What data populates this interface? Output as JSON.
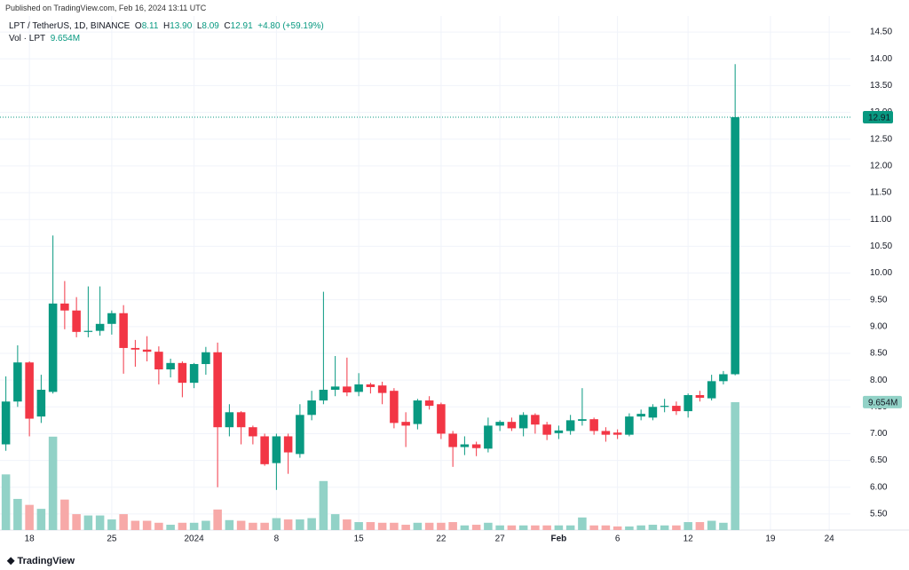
{
  "published": "Published on TradingView.com, Feb 16, 2024 13:11 UTC",
  "brand": "TradingView",
  "legend": {
    "symbol": "LPT / TetherUS, 1D, BINANCE",
    "open_label": "O",
    "open": "8.11",
    "high_label": "H",
    "high": "13.90",
    "low_label": "L",
    "low": "8.09",
    "close_label": "C",
    "close": "12.91",
    "change": "+4.80 (+59.19%)",
    "volume_name": "Vol · LPT",
    "volume": "9.654M"
  },
  "chart_data": {
    "type": "candlestick",
    "up_color": "#089981",
    "down_color": "#f23645",
    "volume_up_color": "#92d2c7",
    "volume_down_color": "#f7a9a8",
    "open": [
      6.8,
      7.6,
      8.33,
      7.32,
      7.78,
      9.43,
      9.3,
      8.9,
      8.92,
      9.05,
      9.25,
      8.6,
      8.57,
      8.53,
      8.2,
      8.32,
      7.95,
      8.3,
      8.52,
      7.12,
      7.4,
      7.12,
      6.95,
      6.45,
      6.95,
      6.62,
      7.35,
      7.62,
      7.82,
      7.88,
      7.78,
      7.92,
      7.9,
      7.8,
      7.22,
      7.18,
      7.62,
      7.55,
      7.0,
      6.75,
      6.8,
      6.72,
      7.15,
      7.22,
      7.1,
      7.35,
      7.17,
      7.01,
      7.05,
      7.24,
      7.27,
      7.05,
      7.02,
      6.98,
      7.32,
      7.3,
      7.5,
      7.52,
      7.42,
      7.72,
      7.66,
      7.98,
      8.11
    ],
    "high": [
      8.07,
      8.65,
      8.35,
      8.1,
      10.7,
      9.85,
      9.55,
      9.75,
      9.75,
      9.3,
      9.4,
      8.75,
      8.82,
      8.63,
      8.4,
      8.35,
      8.32,
      8.62,
      8.7,
      7.55,
      7.42,
      7.15,
      7.0,
      7.0,
      7.0,
      7.55,
      7.8,
      9.65,
      8.45,
      8.42,
      8.13,
      7.95,
      7.97,
      7.85,
      7.4,
      7.65,
      7.7,
      7.58,
      7.05,
      6.95,
      6.85,
      7.3,
      7.25,
      7.3,
      7.4,
      7.38,
      7.22,
      7.15,
      7.35,
      7.85,
      7.3,
      7.12,
      7.08,
      7.38,
      7.45,
      7.55,
      7.65,
      7.6,
      7.75,
      7.8,
      8.1,
      8.17,
      13.9
    ],
    "low": [
      6.68,
      7.5,
      6.95,
      7.2,
      7.75,
      8.95,
      8.8,
      8.8,
      8.83,
      8.85,
      8.12,
      8.25,
      8.35,
      7.92,
      8.05,
      7.68,
      7.85,
      8.1,
      6.0,
      6.95,
      6.8,
      6.8,
      6.4,
      5.95,
      6.25,
      6.55,
      7.25,
      7.55,
      7.7,
      7.7,
      7.7,
      7.75,
      7.55,
      7.1,
      6.75,
      7.08,
      7.45,
      6.9,
      6.38,
      6.6,
      6.58,
      6.65,
      7.05,
      7.05,
      6.95,
      7.0,
      6.88,
      6.9,
      6.98,
      7.15,
      6.98,
      6.85,
      6.9,
      6.95,
      7.25,
      7.25,
      7.4,
      7.35,
      7.3,
      7.6,
      7.62,
      7.92,
      8.09
    ],
    "close": [
      7.6,
      8.33,
      7.28,
      7.82,
      9.43,
      9.3,
      8.9,
      8.92,
      9.05,
      9.25,
      8.6,
      8.57,
      8.53,
      8.2,
      8.32,
      7.95,
      8.3,
      8.52,
      7.12,
      7.4,
      7.12,
      6.95,
      6.43,
      6.95,
      6.65,
      7.35,
      7.62,
      7.82,
      7.88,
      7.77,
      7.92,
      7.87,
      7.76,
      7.2,
      7.15,
      7.62,
      7.52,
      7.0,
      6.75,
      6.8,
      6.73,
      7.15,
      7.22,
      7.1,
      7.35,
      7.17,
      6.98,
      7.06,
      7.25,
      7.27,
      7.05,
      6.98,
      6.98,
      7.32,
      7.37,
      7.5,
      7.52,
      7.42,
      7.72,
      7.67,
      7.98,
      8.11,
      12.91
    ],
    "volume": [
      4.2,
      2.35,
      1.9,
      1.6,
      7.05,
      2.3,
      1.2,
      1.1,
      1.1,
      0.8,
      1.2,
      0.7,
      0.7,
      0.55,
      0.4,
      0.55,
      0.55,
      0.7,
      1.55,
      0.75,
      0.7,
      0.55,
      0.55,
      0.9,
      0.8,
      0.8,
      0.9,
      3.7,
      1.2,
      0.8,
      0.6,
      0.6,
      0.55,
      0.55,
      0.4,
      0.55,
      0.55,
      0.55,
      0.6,
      0.35,
      0.4,
      0.55,
      0.35,
      0.35,
      0.35,
      0.35,
      0.35,
      0.35,
      0.35,
      0.95,
      0.35,
      0.35,
      0.27,
      0.27,
      0.35,
      0.4,
      0.35,
      0.35,
      0.6,
      0.6,
      0.7,
      0.55,
      9.654
    ],
    "last_price_label": "12.91",
    "last_volume_label": "9.654M",
    "ylim": [
      5.2,
      14.8
    ],
    "volume_ylim": [
      0,
      38.8
    ],
    "xlim": [
      -0.5,
      71.8
    ],
    "yticks": [
      {
        "value": 5.5,
        "label": "5.50"
      },
      {
        "value": 6,
        "label": "6.00"
      },
      {
        "value": 6.5,
        "label": "6.50"
      },
      {
        "value": 7,
        "label": "7.00"
      },
      {
        "value": 7.5,
        "label": "7.50"
      },
      {
        "value": 8,
        "label": "8.00"
      },
      {
        "value": 8.5,
        "label": "8.50"
      },
      {
        "value": 9,
        "label": "9.00"
      },
      {
        "value": 9.5,
        "label": "9.50"
      },
      {
        "value": 10,
        "label": "10.00"
      },
      {
        "value": 10.5,
        "label": "10.50"
      },
      {
        "value": 11,
        "label": "11.00"
      },
      {
        "value": 11.5,
        "label": "11.50"
      },
      {
        "value": 12,
        "label": "12.00"
      },
      {
        "value": 12.5,
        "label": "12.50"
      },
      {
        "value": 13,
        "label": "13.00"
      },
      {
        "value": 13.5,
        "label": "13.50"
      },
      {
        "value": 14,
        "label": "14.00"
      },
      {
        "value": 14.5,
        "label": "14.50"
      }
    ],
    "xticks": [
      {
        "value": 2,
        "label": "18"
      },
      {
        "value": 9,
        "label": "25"
      },
      {
        "value": 16,
        "label": "2024"
      },
      {
        "value": 23,
        "label": "8"
      },
      {
        "value": 30,
        "label": "15"
      },
      {
        "value": 37,
        "label": "22"
      },
      {
        "value": 42,
        "label": "27"
      },
      {
        "value": 47,
        "label": "Feb"
      },
      {
        "value": 52,
        "label": "6"
      },
      {
        "value": 58,
        "label": "12"
      },
      {
        "value": 65,
        "label": "19"
      },
      {
        "value": 70,
        "label": "24"
      }
    ],
    "grid": true
  }
}
